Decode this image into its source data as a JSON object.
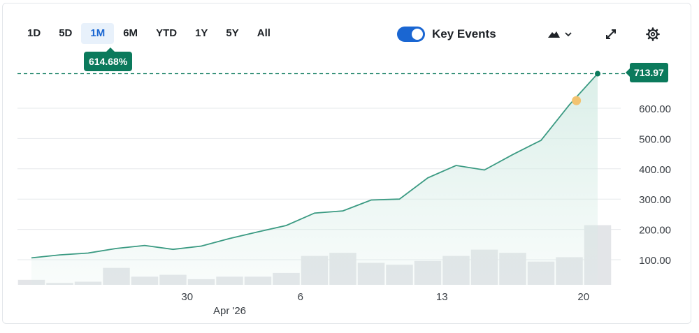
{
  "toolbar": {
    "ranges": [
      "1D",
      "5D",
      "1M",
      "6M",
      "YTD",
      "1Y",
      "5Y",
      "All"
    ],
    "active_range": "1M",
    "key_events_label": "Key Events",
    "key_events_on": true,
    "chart_type_icon": "mountain-area-icon",
    "expand_icon": "expand-arrows-icon",
    "settings_icon": "gear-icon"
  },
  "change_badge": "614.68%",
  "last_price_badge": "713.97",
  "colors": {
    "line": "#3a9a82",
    "area": "#d5ece5",
    "volume": "#e3e5e8",
    "badge": "#0b7a5c",
    "accent": "#1a66d2",
    "event_dot": "#f2c371"
  },
  "chart_data": {
    "type": "line",
    "title": "",
    "ylim": [
      20,
      720
    ],
    "y_ticks": [
      "100.00",
      "200.00",
      "300.00",
      "400.00",
      "500.00",
      "600.00"
    ],
    "y_tick_values": [
      100,
      200,
      300,
      400,
      500,
      600
    ],
    "x_tick_labels": [
      "30",
      "6",
      "13",
      "20"
    ],
    "x_tick_index": [
      5.5,
      9.5,
      14.5,
      19.5
    ],
    "x_secondary_label": "Apr '26",
    "x_secondary_index": 7,
    "price": [
      106,
      116,
      122,
      137,
      147,
      134,
      145,
      170,
      192,
      213,
      254,
      261,
      297,
      300,
      370,
      411,
      396,
      447,
      494,
      611,
      713.97
    ],
    "volume_relative": [
      0.08,
      0.03,
      0.05,
      0.27,
      0.13,
      0.16,
      0.09,
      0.13,
      0.13,
      0.19,
      0.46,
      0.51,
      0.35,
      0.32,
      0.38,
      0.46,
      0.56,
      0.51,
      0.37,
      0.44,
      0.95
    ],
    "reference_line": 713.97,
    "event_marker": {
      "index": 19.25,
      "value": 625
    }
  }
}
